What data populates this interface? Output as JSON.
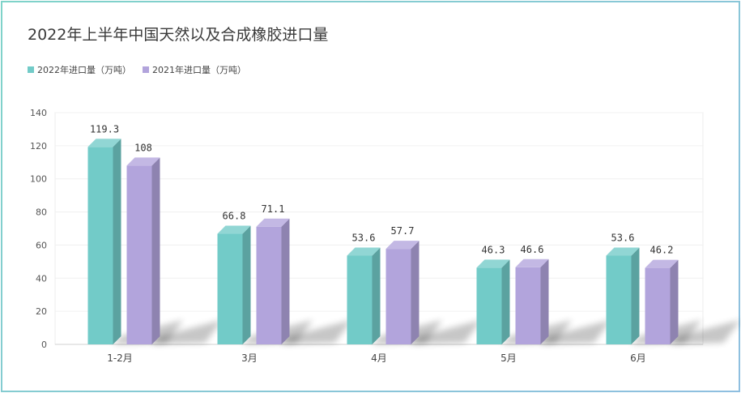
{
  "chart_data": {
    "type": "bar",
    "title": "2022年上半年中国天然以及合成橡胶进口量",
    "categories": [
      "1-2月",
      "3月",
      "4月",
      "5月",
      "6月"
    ],
    "series": [
      {
        "name": "2022年进口量（万吨）",
        "values": [
          119.3,
          66.8,
          53.6,
          46.3,
          53.6
        ],
        "labels": [
          "119.3",
          "66.8",
          "53.6",
          "46.3",
          "53.6"
        ],
        "color": "#72cbc8"
      },
      {
        "name": "2021年进口量（万吨）",
        "values": [
          108,
          71.1,
          57.7,
          46.6,
          46.2
        ],
        "labels": [
          "108",
          "71.1",
          "57.7",
          "46.6",
          "46.2"
        ],
        "color": "#b2a4dc"
      }
    ],
    "y_ticks": [
      "0",
      "20",
      "40",
      "60",
      "80",
      "100",
      "120",
      "140"
    ],
    "ylim": [
      0,
      140
    ],
    "grid": true,
    "legend": "top-left"
  }
}
